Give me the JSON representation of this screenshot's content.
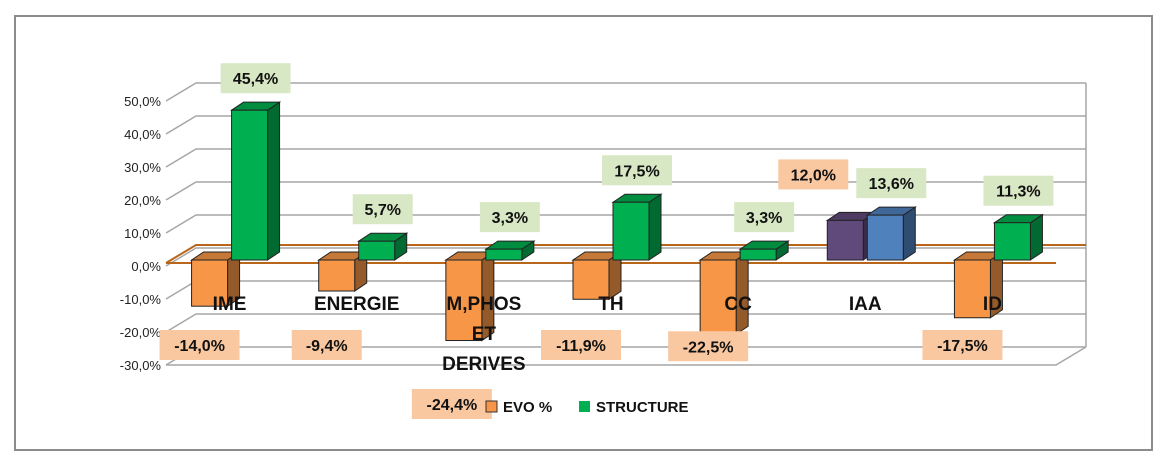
{
  "chart_data": {
    "type": "bar",
    "title": "",
    "xlabel": "",
    "ylabel": "",
    "ylim": [
      -30,
      50
    ],
    "y_ticks": [
      "50,0%",
      "40,0%",
      "30,0%",
      "20,0%",
      "10,0%",
      "0,0%",
      "-10,0%",
      "-20,0%",
      "-30,0%"
    ],
    "categories": [
      "IME",
      "ENERGIE",
      "M,PHOS ET DERIVES",
      "TH",
      "CC",
      "IAA",
      "ID"
    ],
    "category_lines": [
      [
        "IME"
      ],
      [
        "ENERGIE"
      ],
      [
        "M,PHOS",
        "ET",
        "DERIVES"
      ],
      [
        "TH"
      ],
      [
        "CC"
      ],
      [
        "IAA"
      ],
      [
        "ID"
      ]
    ],
    "series": [
      {
        "name": "EVO %",
        "values": [
          -14.0,
          -9.4,
          -24.4,
          -11.9,
          -22.5,
          12.0,
          -17.5
        ],
        "labels": [
          "-14,0%",
          "-9,4%",
          "-24,4%",
          "-11,9%",
          "-22,5%",
          "12,0%",
          "-17,5%"
        ],
        "color": "#f79646",
        "label_bg": "#fac8a0"
      },
      {
        "name": "STRUCTURE",
        "values": [
          45.4,
          5.7,
          3.3,
          17.5,
          3.3,
          13.6,
          11.3
        ],
        "labels": [
          "45,4%",
          "5,7%",
          "3,3%",
          "17,5%",
          "3,3%",
          "13,6%",
          "11,3%"
        ],
        "color": "#00b050",
        "label_bg": "#d9e8c4"
      }
    ],
    "highlight_colors": {
      "evo_iaa": "#604a7b",
      "structure_iaa": "#4f81bd"
    },
    "legend": [
      "EVO %",
      "STRUCTURE"
    ],
    "legend_position": "bottom",
    "grid": true
  }
}
